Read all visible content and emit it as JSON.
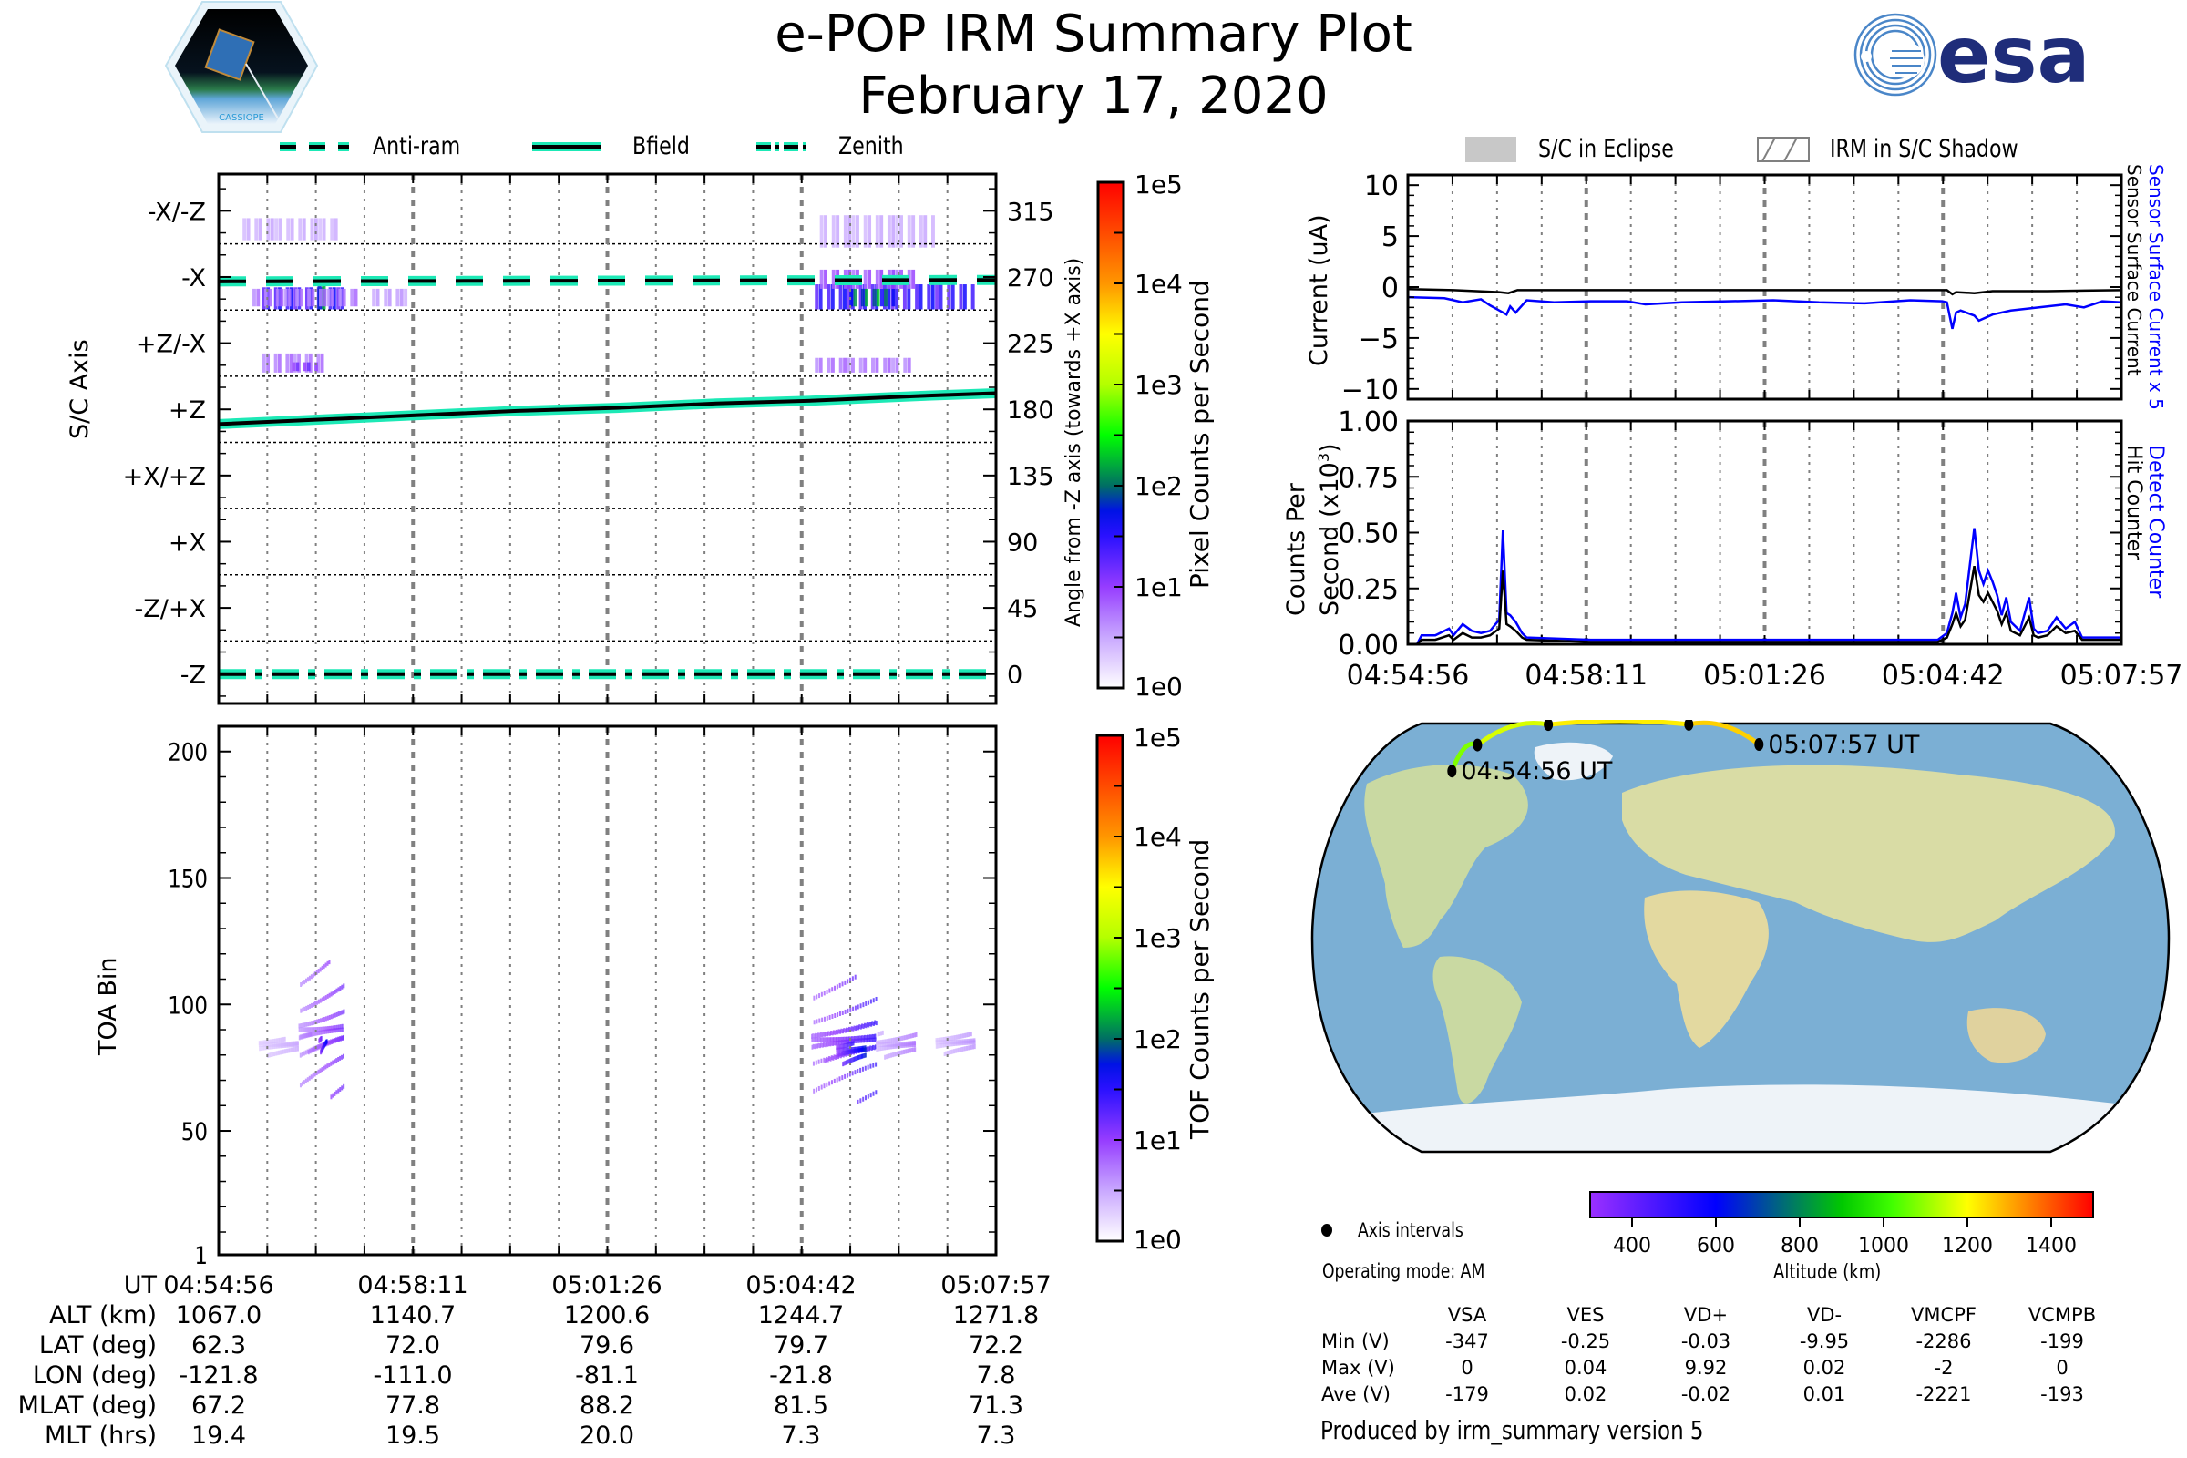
{
  "header": {
    "title": "e-POP IRM Summary Plot",
    "date": "February 17, 2020",
    "left_logo": "cassiope-mission-patch",
    "left_logo_text": "CASSIOPE",
    "right_logo_text": "esa"
  },
  "colors": {
    "cyan": "#1de9b6",
    "blue": "#0000ff",
    "black": "#000000",
    "purple": "#8a2be2",
    "esa_blue": "#1f2d7a",
    "grid": "#808080"
  },
  "top_legend": [
    {
      "label": "Anti-ram",
      "style": "dashed"
    },
    {
      "label": "Bfield",
      "style": "solid"
    },
    {
      "label": "Zenith",
      "style": "dashdot"
    }
  ],
  "right_legend": [
    {
      "label": "S/C in Eclipse",
      "style": "gray-fill"
    },
    {
      "label": "IRM in S/C Shadow",
      "style": "hatch"
    }
  ],
  "time_ticks": [
    "04:54:56",
    "04:58:11",
    "05:01:26",
    "05:04:42",
    "05:07:57"
  ],
  "chart_data": [
    {
      "id": "sc-axis-panel",
      "type": "heatmap",
      "ylabel": "S/C Axis",
      "ylabel_right": "Angle from -Z axis (towards +X axis)",
      "y_categories": [
        "-X/-Z",
        "-X",
        "+Z/-X",
        "+Z",
        "+X/+Z",
        "+X",
        "-Z/+X",
        "-Z"
      ],
      "y_right_ticks": [
        315,
        270,
        225,
        180,
        135,
        90,
        45,
        0
      ],
      "ylim": [
        -20,
        340
      ],
      "xlim": [
        0,
        781
      ],
      "grid": true,
      "colorbar": {
        "label": "Pixel Counts per Second",
        "ticks": [
          "1e0",
          "1e1",
          "1e2",
          "1e3",
          "1e4",
          "1e5"
        ],
        "scale": "log"
      },
      "series": [
        {
          "name": "Anti-ram",
          "style": "dashed",
          "x": [
            0,
            781
          ],
          "y": [
            267,
            268
          ]
        },
        {
          "name": "Bfield",
          "style": "solid",
          "x": [
            0,
            100,
            200,
            300,
            400,
            500,
            600,
            700,
            781
          ],
          "y": [
            170,
            173,
            176,
            179,
            181,
            184,
            186,
            189,
            191
          ]
        },
        {
          "name": "Zenith",
          "style": "dashdot",
          "x": [
            0,
            781
          ],
          "y": [
            0,
            0
          ]
        }
      ],
      "blobs": [
        {
          "t0": 40,
          "t1": 130,
          "a0": 248,
          "a1": 263,
          "level": 1.6
        },
        {
          "t0": 95,
          "t1": 108,
          "a0": 248,
          "a1": 265,
          "level": 2.3
        },
        {
          "t0": 30,
          "t1": 140,
          "a0": 250,
          "a1": 262,
          "level": 0.8
        },
        {
          "t0": 150,
          "t1": 190,
          "a0": 250,
          "a1": 262,
          "level": 0.6
        },
        {
          "t0": 595,
          "t1": 760,
          "a0": 248,
          "a1": 265,
          "level": 1.6
        },
        {
          "t0": 630,
          "t1": 680,
          "a0": 250,
          "a1": 262,
          "level": 2.2
        },
        {
          "t0": 600,
          "t1": 700,
          "a0": 262,
          "a1": 275,
          "level": 1.0
        },
        {
          "t0": 40,
          "t1": 110,
          "a0": 205,
          "a1": 218,
          "level": 0.8
        },
        {
          "t0": 70,
          "t1": 100,
          "a0": 206,
          "a1": 212,
          "level": 1.2
        },
        {
          "t0": 595,
          "t1": 700,
          "a0": 205,
          "a1": 215,
          "level": 0.8
        },
        {
          "t0": 20,
          "t1": 120,
          "a0": 295,
          "a1": 310,
          "level": 0.5
        },
        {
          "t0": 600,
          "t1": 720,
          "a0": 290,
          "a1": 312,
          "level": 0.5
        }
      ]
    },
    {
      "id": "toa-panel",
      "type": "heatmap",
      "ylabel": "TOA Bin",
      "y_ticks": [
        1,
        50,
        100,
        150,
        200
      ],
      "ylim": [
        1,
        210
      ],
      "xlim": [
        0,
        781
      ],
      "grid": true,
      "colorbar": {
        "label": "TOF Counts per Second",
        "ticks": [
          "1e0",
          "1e1",
          "1e2",
          "1e3",
          "1e4",
          "1e5"
        ],
        "scale": "log"
      },
      "blobs": [
        {
          "t0": 80,
          "t1": 125,
          "b0": 64,
          "b1": 118,
          "level": 0.9
        },
        {
          "t0": 100,
          "t1": 108,
          "b0": 68,
          "b1": 110,
          "level": 1.3
        },
        {
          "t0": 40,
          "t1": 80,
          "b0": 72,
          "b1": 98,
          "level": 0.4
        },
        {
          "t0": 595,
          "t1": 660,
          "b0": 62,
          "b1": 112,
          "level": 1.1
        },
        {
          "t0": 620,
          "t1": 650,
          "b0": 66,
          "b1": 100,
          "level": 1.4
        },
        {
          "t0": 660,
          "t1": 700,
          "b0": 70,
          "b1": 100,
          "level": 0.6
        },
        {
          "t0": 720,
          "t1": 760,
          "b0": 72,
          "b1": 100,
          "level": 0.5
        }
      ]
    },
    {
      "id": "current-panel",
      "type": "line",
      "ylabel": "Current (uA)",
      "ylabel_right": [
        "Sensor Surface Current x 5",
        "Sensor Surface Current"
      ],
      "y_ticks": [
        10,
        5,
        0,
        -5,
        -10
      ],
      "ylim": [
        -11,
        11
      ],
      "xlim": [
        0,
        781
      ],
      "grid": true,
      "series": [
        {
          "name": "Sensor Surface Current",
          "color": "#000000",
          "x": [
            0,
            50,
            100,
            110,
            120,
            130,
            200,
            300,
            400,
            500,
            590,
            596,
            600,
            620,
            640,
            700,
            781
          ],
          "y": [
            -0.2,
            -0.3,
            -0.5,
            -0.6,
            -0.3,
            -0.3,
            -0.3,
            -0.3,
            -0.3,
            -0.3,
            -0.3,
            -0.7,
            -0.5,
            -0.6,
            -0.4,
            -0.4,
            -0.3
          ]
        },
        {
          "name": "Sensor Surface Current x 5",
          "color": "#0000ff",
          "x": [
            0,
            40,
            60,
            80,
            90,
            100,
            108,
            112,
            118,
            130,
            160,
            200,
            240,
            260,
            300,
            350,
            400,
            450,
            500,
            550,
            585,
            590,
            596,
            600,
            605,
            620,
            625,
            640,
            660,
            680,
            700,
            720,
            740,
            760,
            781
          ],
          "y": [
            -1.0,
            -1.1,
            -1.5,
            -1.2,
            -1.8,
            -2.3,
            -2.7,
            -1.9,
            -2.5,
            -1.3,
            -1.5,
            -1.4,
            -1.4,
            -1.7,
            -1.5,
            -1.4,
            -1.3,
            -1.5,
            -1.6,
            -1.3,
            -1.4,
            -1.5,
            -4.1,
            -2.5,
            -2.3,
            -2.8,
            -3.3,
            -2.7,
            -2.3,
            -2.1,
            -1.9,
            -1.7,
            -2.0,
            -1.4,
            -1.5
          ]
        }
      ]
    },
    {
      "id": "counter-panel",
      "type": "line",
      "ylabel": "Counts Per Second (x10^3)",
      "ylabel_right": [
        "Detect Counter",
        "Hit Counter"
      ],
      "y_ticks": [
        "0.00",
        "0.25",
        "0.50",
        "0.75",
        "1.00"
      ],
      "ylim": [
        0,
        1
      ],
      "xlim": [
        0,
        781
      ],
      "xticks": [
        "04:54:56",
        "04:58:11",
        "05:01:26",
        "05:04:42",
        "05:07:57"
      ],
      "grid": true,
      "series": [
        {
          "name": "Detect Counter",
          "color": "#0000ff",
          "x": [
            0,
            10,
            15,
            30,
            45,
            50,
            60,
            70,
            80,
            90,
            100,
            104,
            108,
            112,
            118,
            125,
            130,
            200,
            300,
            400,
            500,
            580,
            590,
            596,
            600,
            605,
            610,
            620,
            625,
            630,
            635,
            640,
            645,
            650,
            655,
            660,
            670,
            680,
            685,
            690,
            700,
            710,
            720,
            730,
            738,
            745,
            760,
            781
          ],
          "y": [
            0.0,
            0.0,
            0.04,
            0.04,
            0.07,
            0.04,
            0.09,
            0.06,
            0.05,
            0.06,
            0.11,
            0.51,
            0.14,
            0.13,
            0.1,
            0.05,
            0.03,
            0.02,
            0.02,
            0.02,
            0.02,
            0.02,
            0.05,
            0.14,
            0.23,
            0.12,
            0.18,
            0.52,
            0.33,
            0.27,
            0.33,
            0.28,
            0.22,
            0.13,
            0.21,
            0.1,
            0.06,
            0.21,
            0.07,
            0.05,
            0.06,
            0.12,
            0.07,
            0.1,
            0.03,
            0.03,
            0.03,
            0.03
          ]
        },
        {
          "name": "Hit Counter",
          "color": "#000000",
          "x": [
            0,
            10,
            15,
            30,
            45,
            50,
            60,
            70,
            80,
            90,
            100,
            104,
            108,
            112,
            118,
            125,
            130,
            200,
            300,
            400,
            500,
            580,
            590,
            596,
            600,
            605,
            610,
            620,
            625,
            630,
            635,
            640,
            645,
            650,
            655,
            660,
            670,
            680,
            685,
            690,
            700,
            710,
            720,
            730,
            738,
            745,
            760,
            781
          ],
          "y": [
            0.0,
            0.0,
            0.02,
            0.02,
            0.04,
            0.02,
            0.05,
            0.03,
            0.03,
            0.04,
            0.07,
            0.33,
            0.09,
            0.08,
            0.06,
            0.03,
            0.02,
            0.01,
            0.01,
            0.01,
            0.01,
            0.01,
            0.03,
            0.09,
            0.14,
            0.08,
            0.11,
            0.35,
            0.22,
            0.19,
            0.23,
            0.19,
            0.15,
            0.09,
            0.14,
            0.06,
            0.04,
            0.12,
            0.04,
            0.03,
            0.04,
            0.08,
            0.05,
            0.06,
            0.02,
            0.02,
            0.02,
            0.02
          ]
        }
      ]
    }
  ],
  "map": {
    "track_points": [
      {
        "lat": 62.3,
        "lon": -121.8,
        "label": "04:54:56 UT"
      },
      {
        "lat": 72.0,
        "lon": -111.0,
        "label": ""
      },
      {
        "lat": 79.6,
        "lon": -81.1,
        "label": ""
      },
      {
        "lat": 79.7,
        "lon": -21.8,
        "label": ""
      },
      {
        "lat": 72.2,
        "lon": 7.8,
        "label": "05:07:57 UT"
      }
    ],
    "legend_label": "Axis intervals",
    "operating_mode": "Operating mode: AM",
    "altitude_colorbar": {
      "label": "Altitude (km)",
      "ticks": [
        "400",
        "600",
        "800",
        "1000",
        "1200",
        "1400"
      ],
      "range": [
        300,
        1500
      ]
    }
  },
  "orbit_table": {
    "row_labels": [
      "UT",
      "ALT (km)",
      "LAT (deg)",
      "LON (deg)",
      "MLAT (deg)",
      "MLT (hrs)"
    ],
    "columns": [
      [
        "04:54:56",
        "1067.0",
        "62.3",
        "-121.8",
        "67.2",
        "19.4"
      ],
      [
        "04:58:11",
        "1140.7",
        "72.0",
        "-111.0",
        "77.8",
        "19.5"
      ],
      [
        "05:01:26",
        "1200.6",
        "79.6",
        "-81.1",
        "88.2",
        "20.0"
      ],
      [
        "05:04:42",
        "1244.7",
        "79.7",
        "-21.8",
        "81.5",
        "7.3"
      ],
      [
        "05:07:57",
        "1271.8",
        "72.2",
        "7.8",
        "71.3",
        "7.3"
      ]
    ]
  },
  "voltage_table": {
    "headers": [
      "VSA",
      "VES",
      "VD+",
      "VD-",
      "VMCPF",
      "VCMPB"
    ],
    "rows": [
      {
        "label": "Min (V)",
        "values": [
          "-347",
          "-0.25",
          "-0.03",
          "-9.95",
          "-2286",
          "-199"
        ]
      },
      {
        "label": "Max (V)",
        "values": [
          "0",
          "0.04",
          "9.92",
          "0.02",
          "-2",
          "0"
        ]
      },
      {
        "label": "Ave (V)",
        "values": [
          "-179",
          "0.02",
          "-0.02",
          "0.01",
          "-2221",
          "-193"
        ]
      }
    ]
  },
  "footer": "Produced by irm_summary version 5"
}
